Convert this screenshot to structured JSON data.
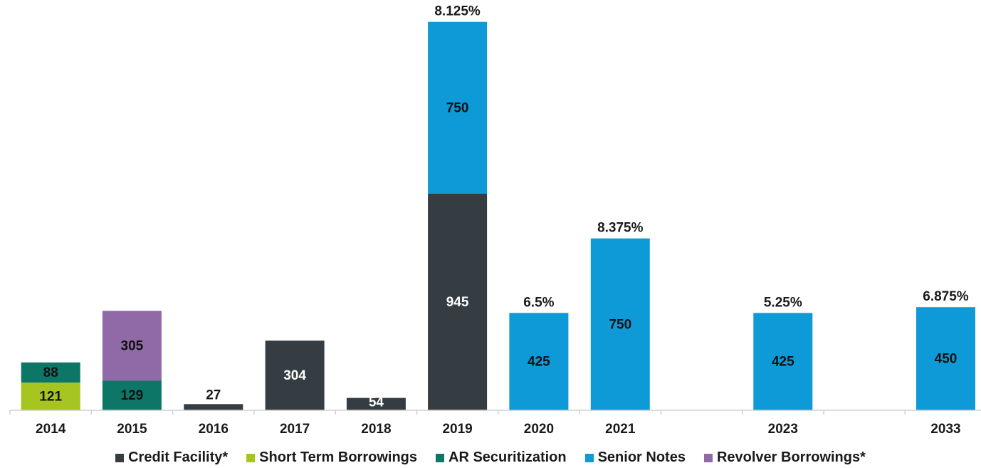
{
  "chart_data": {
    "type": "bar",
    "stacked": true,
    "categories": [
      "2014",
      "2015",
      "2016",
      "2017",
      "2018",
      "2019",
      "2020",
      "2021",
      "",
      "2023",
      "",
      "2033"
    ],
    "ylim": [
      0,
      1750
    ],
    "grid": false,
    "legend_position": "bottom",
    "series": [
      {
        "name": "Credit Facility*",
        "color": "#353d42",
        "values": [
          0,
          0,
          27,
          304,
          54,
          945,
          0,
          0,
          0,
          0,
          0,
          0
        ]
      },
      {
        "name": "Short Term Borrowings",
        "color": "#a6c520",
        "values": [
          121,
          0,
          0,
          0,
          0,
          0,
          0,
          0,
          0,
          0,
          0,
          0
        ]
      },
      {
        "name": "AR Securitization",
        "color": "#0e7667",
        "values": [
          88,
          129,
          0,
          0,
          0,
          0,
          0,
          0,
          0,
          0,
          0,
          0
        ]
      },
      {
        "name": "Senior Notes",
        "color": "#0d9ad7",
        "values": [
          0,
          0,
          0,
          0,
          0,
          750,
          425,
          750,
          0,
          425,
          0,
          450
        ]
      },
      {
        "name": "Revolver Borrowings*",
        "color": "#8f6aa6",
        "values": [
          0,
          305,
          0,
          0,
          0,
          0,
          0,
          0,
          0,
          0,
          0,
          0
        ]
      }
    ],
    "annotations": [
      {
        "category_index": 5,
        "text": "8.125%"
      },
      {
        "category_index": 6,
        "text": "6.5%"
      },
      {
        "category_index": 7,
        "text": "8.375%"
      },
      {
        "category_index": 9,
        "text": "5.25%"
      },
      {
        "category_index": 11,
        "text": "6.875%"
      }
    ]
  }
}
